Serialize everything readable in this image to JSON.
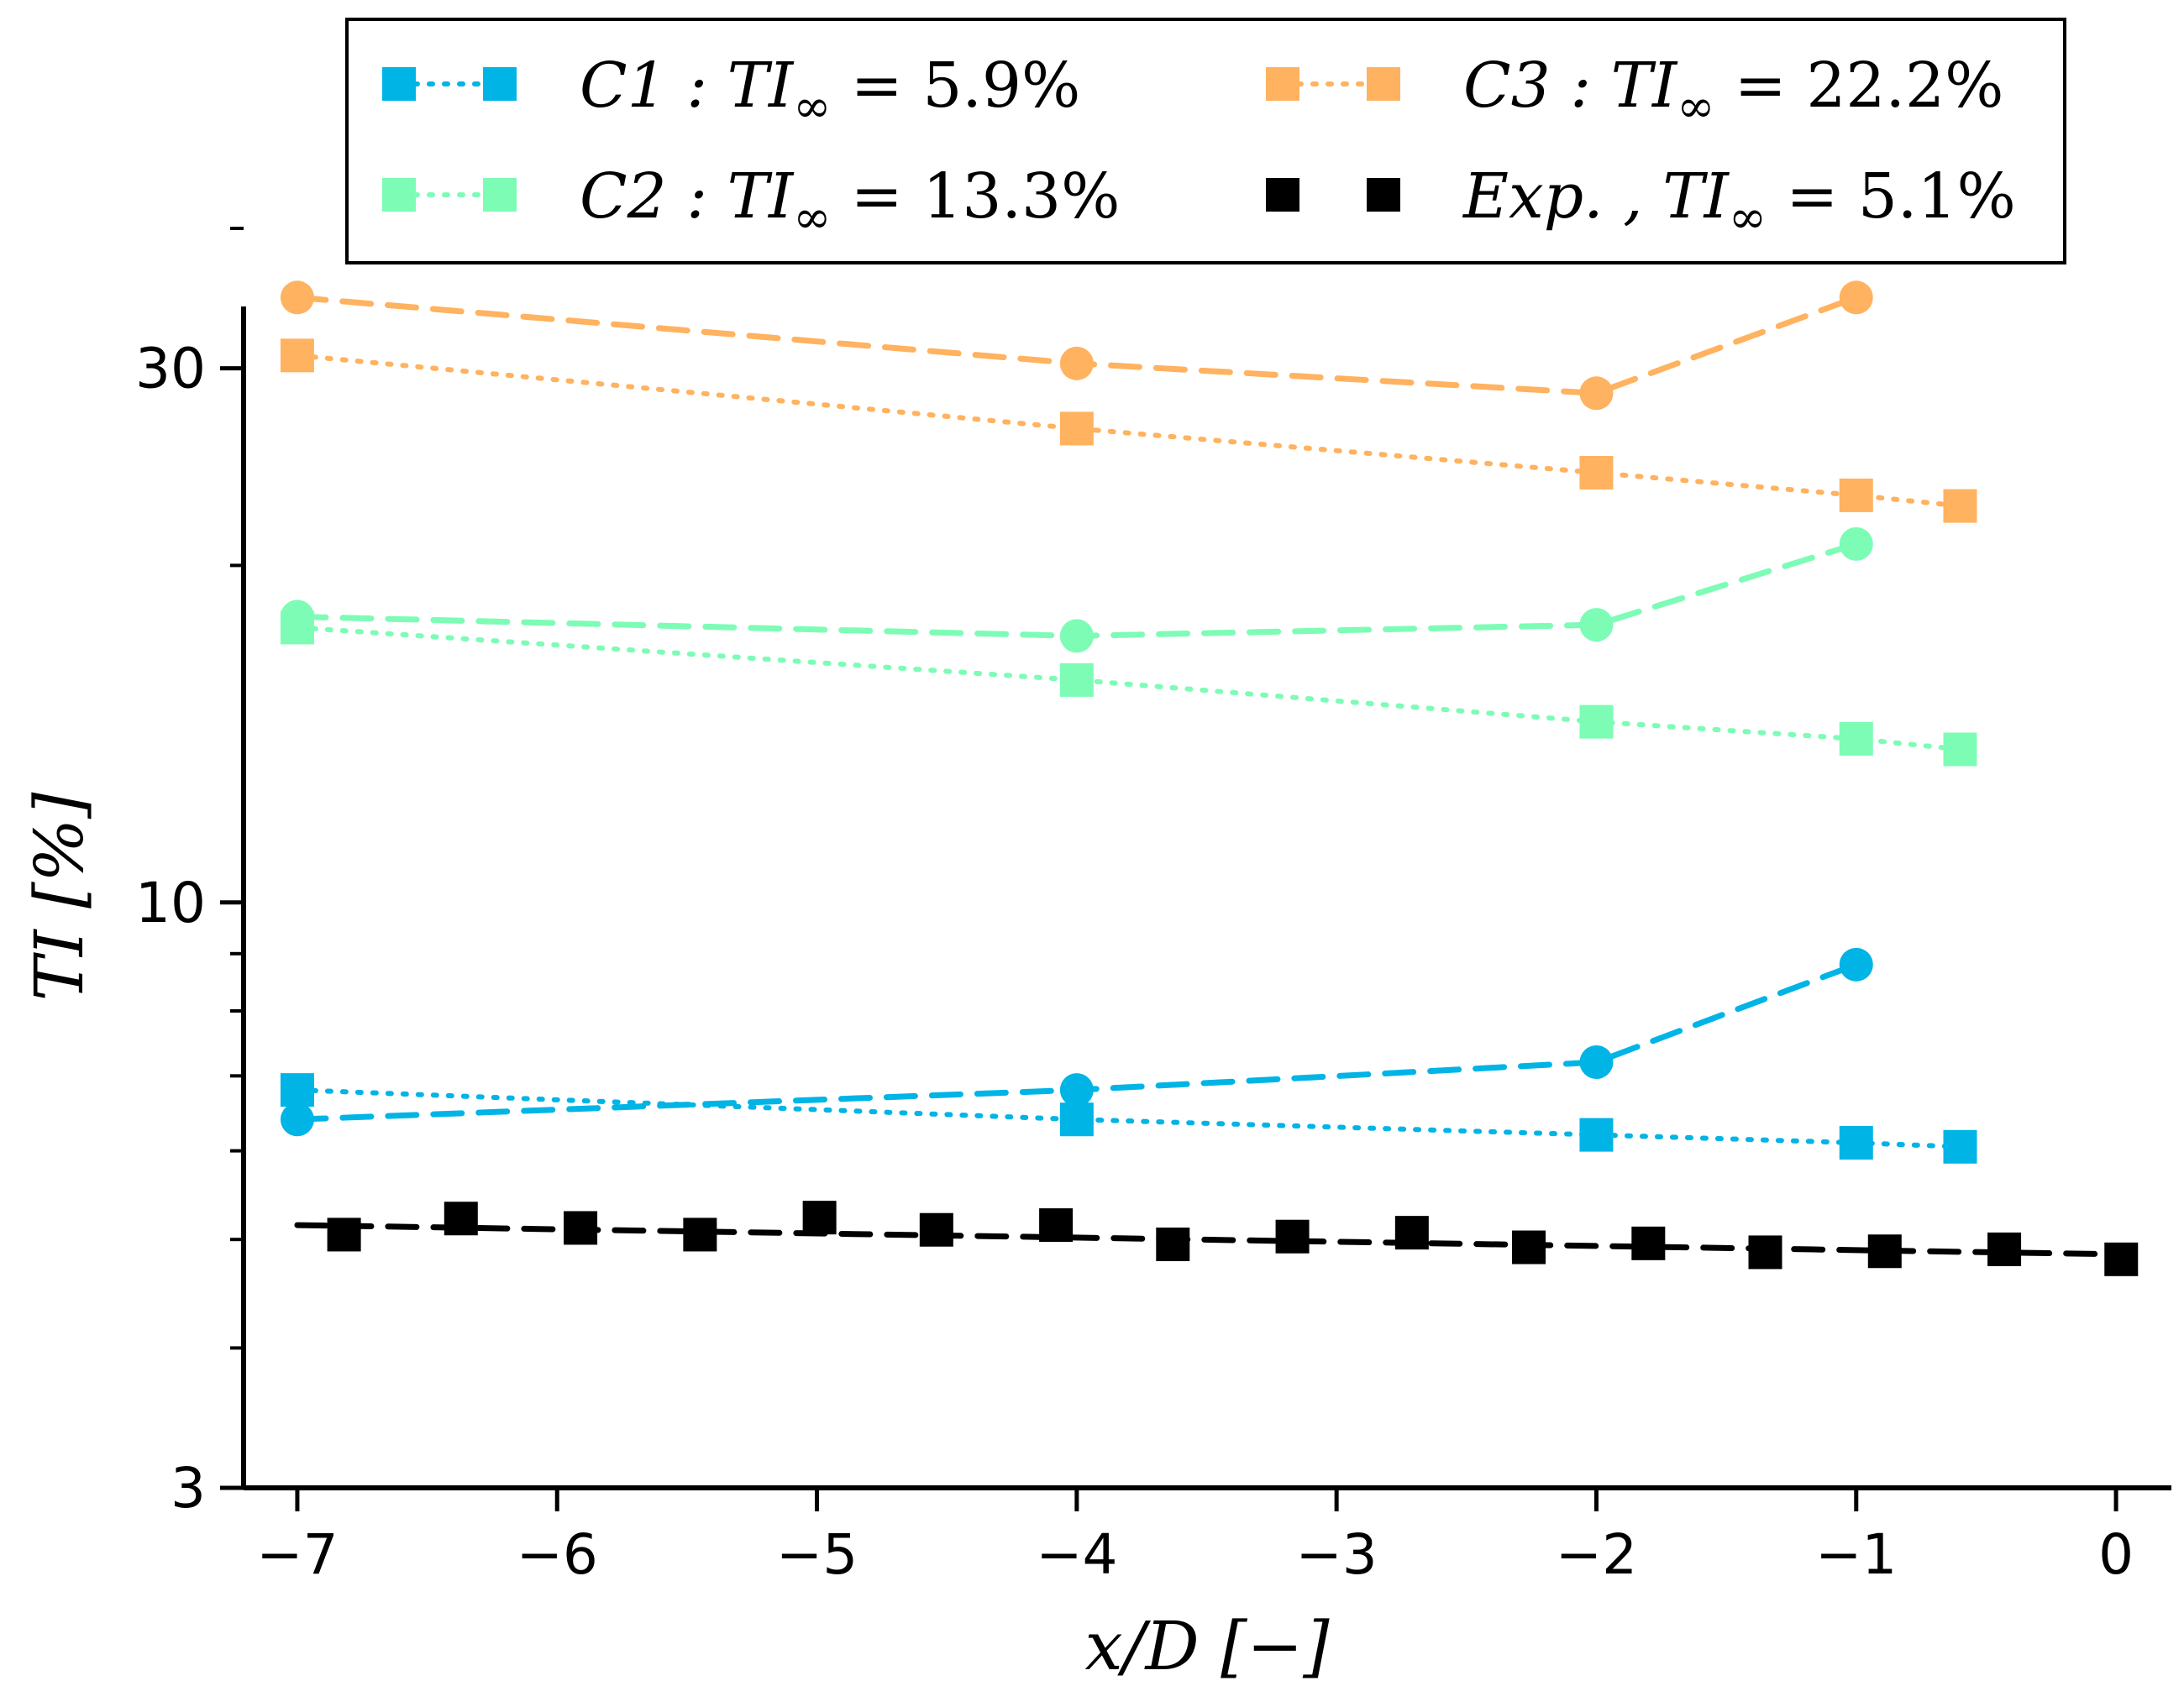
{
  "chart_data": {
    "type": "line",
    "title": "",
    "xlabel": "x/D [−]",
    "ylabel": "TI [%]",
    "xlim": [
      -7.1,
      0.1
    ],
    "ylim": [
      3,
      40
    ],
    "yscale": "log",
    "xticks": [
      -7,
      -6,
      -5,
      -4,
      -3,
      -2,
      -1,
      0
    ],
    "xtick_labels": [
      "−7",
      "−6",
      "−5",
      "−4",
      "−3",
      "−2",
      "−1",
      "0"
    ],
    "yticks": [
      3,
      10,
      30
    ],
    "ytick_labels": [
      "3",
      "10",
      "30"
    ],
    "legend_position": "top",
    "series": [
      {
        "name": "C1 squares",
        "color": "#00b4e6",
        "marker": "square",
        "linestyle": "dotted",
        "x": [
          -7,
          -4,
          -2,
          -1,
          -0.6
        ],
        "y": [
          6.8,
          6.4,
          6.2,
          6.1,
          6.05
        ]
      },
      {
        "name": "C1 circles",
        "color": "#00b4e6",
        "marker": "circle",
        "linestyle": "dashed",
        "x": [
          -7,
          -4,
          -2,
          -1
        ],
        "y": [
          6.4,
          6.8,
          7.2,
          8.8
        ]
      },
      {
        "name": "C2 squares",
        "color": "#7dfcb5",
        "marker": "square",
        "linestyle": "dotted",
        "x": [
          -7,
          -4,
          -2,
          -1,
          -0.6
        ],
        "y": [
          17.6,
          15.8,
          14.5,
          14.0,
          13.7
        ]
      },
      {
        "name": "C2 circles",
        "color": "#7dfcb5",
        "marker": "circle",
        "linestyle": "dashed",
        "x": [
          -7,
          -4,
          -2,
          -1
        ],
        "y": [
          18.0,
          17.3,
          17.7,
          20.9
        ]
      },
      {
        "name": "C3 squares",
        "color": "#ffb25f",
        "marker": "square",
        "linestyle": "dotted",
        "x": [
          -7,
          -4,
          -2,
          -1,
          -0.6
        ],
        "y": [
          30.8,
          26.5,
          24.2,
          23.1,
          22.6
        ]
      },
      {
        "name": "C3 circles",
        "color": "#ffb25f",
        "marker": "circle",
        "linestyle": "dashed",
        "x": [
          -7,
          -4,
          -2,
          -1
        ],
        "y": [
          34.7,
          30.3,
          28.5,
          34.7
        ]
      },
      {
        "name": "Exp. squares",
        "color": "#000000",
        "marker": "square",
        "linestyle": "none",
        "x": [
          -6.82,
          -6.37,
          -5.91,
          -5.45,
          -4.99,
          -4.54,
          -4.08,
          -3.63,
          -3.17,
          -2.71,
          -2.26,
          -1.8,
          -1.35,
          -0.89,
          -0.43,
          0.02
        ],
        "y": [
          5.05,
          5.22,
          5.12,
          5.05,
          5.23,
          5.1,
          5.15,
          4.95,
          5.03,
          5.07,
          4.92,
          4.96,
          4.87,
          4.88,
          4.9,
          4.8
        ]
      },
      {
        "name": "Exp. fit",
        "color": "#000000",
        "marker": "none",
        "linestyle": "dashed",
        "x": [
          -7,
          0
        ],
        "y": [
          5.15,
          4.85
        ]
      }
    ],
    "legend": [
      {
        "label": "C1 : TI∞ = 5.9%",
        "main": "C1 : TI",
        "sub": "∞",
        "eq": " = 5.9%",
        "color": "#00b4e6",
        "linestyle": "dotted"
      },
      {
        "label": "C2 : TI∞ = 13.3%",
        "main": "C2 : TI",
        "sub": "∞",
        "eq": " = 13.3%",
        "color": "#7dfcb5",
        "linestyle": "dotted"
      },
      {
        "label": "C3 : TI∞ = 22.2%",
        "main": "C3 : TI",
        "sub": "∞",
        "eq": " = 22.2%",
        "color": "#ffb25f",
        "linestyle": "dotted"
      },
      {
        "label": "Exp. , TI∞ = 5.1%",
        "main": "Exp. , TI",
        "sub": "∞",
        "eq": " = 5.1%",
        "color": "#000000",
        "linestyle": "none"
      }
    ]
  }
}
